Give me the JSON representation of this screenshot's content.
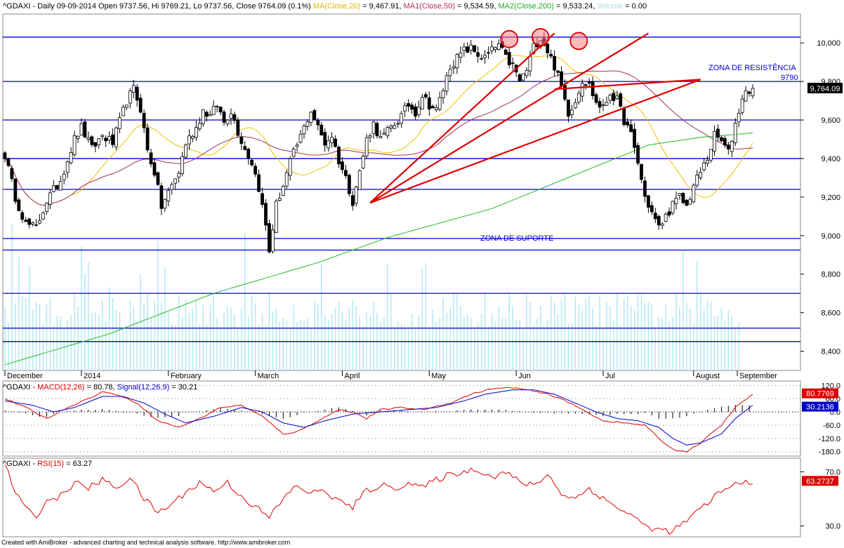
{
  "header": {
    "symbol": "^GDAXI",
    "period": "Daily",
    "date": "09-09-2014",
    "open": "Open 9737.56,",
    "hi": "Hi 9769.21,",
    "lo": "Lo 9737.56,",
    "close": "Close 9764.09 (0.1%)",
    "ma20_label": "MA(Close,20)",
    "ma20_value": "= 9,467.91,",
    "ma50_label": "MA1(Close,50)",
    "ma50_value": "= 9,534.59,",
    "ma200_label": "MA2(Close,200)",
    "ma200_value": "= 9,533.24,",
    "volume_label": "Volume",
    "volume_value": "= 0.00"
  },
  "macd_header": {
    "symbol": "^GDAXI -",
    "macd_label": "MACD(12,26)",
    "macd_value": "= 80.78,",
    "signal_label": "Signal(12,26,9)",
    "signal_value": "= 30.21"
  },
  "rsi_header": {
    "symbol": "^GDAXI -",
    "rsi_label": "RSI(15)",
    "rsi_value": "= 63.27"
  },
  "annotations": {
    "resistance": "ZONA DE RESISTÊNCIA",
    "support": "ZONA DE SUPORTE",
    "level_9790": "9790"
  },
  "footer": "Created with AmiBroker - advanced charting and technical analysis software. http://www.amibroker.com",
  "colors": {
    "up": "#ffffff",
    "down": "#000000",
    "ma20": "#f0c000",
    "ma50": "#a0305a",
    "ma200": "#22bb22",
    "volume": "#aee6f2",
    "hline": "#0000cc",
    "trend": "#dd0000",
    "macd": "#dd0000",
    "signal": "#0000cc",
    "rsi": "#dd0000"
  },
  "chart_data": [
    {
      "type": "candlestick",
      "title": "^GDAXI - Daily 09-09-2014",
      "ylim": [
        8300,
        10150
      ],
      "y_ticks": [
        "8,400",
        "8,600",
        "8,800",
        "9,000",
        "9,200",
        "9,400",
        "9,600",
        "9,800",
        "10,000"
      ],
      "x_labels": [
        "December",
        "2014",
        "February",
        "March",
        "April",
        "May",
        "Jun",
        "Jul",
        "August",
        "September"
      ],
      "last_close_label": "9,764.09",
      "horizontal_levels": [
        10030,
        9800,
        9600,
        9400,
        9240,
        8985,
        8925,
        8700,
        8520,
        8450
      ],
      "waypoints": [
        [
          0,
          9420
        ],
        [
          3,
          9200
        ],
        [
          6,
          9060
        ],
        [
          9,
          9040
        ],
        [
          12,
          9180
        ],
        [
          16,
          9290
        ],
        [
          20,
          9500
        ],
        [
          22,
          9560
        ],
        [
          25,
          9450
        ],
        [
          28,
          9520
        ],
        [
          31,
          9480
        ],
        [
          35,
          9700
        ],
        [
          37,
          9760
        ],
        [
          39,
          9660
        ],
        [
          41,
          9440
        ],
        [
          43,
          9330
        ],
        [
          45,
          9150
        ],
        [
          48,
          9260
        ],
        [
          50,
          9330
        ],
        [
          52,
          9480
        ],
        [
          55,
          9560
        ],
        [
          57,
          9650
        ],
        [
          59,
          9620
        ],
        [
          61,
          9680
        ],
        [
          63,
          9590
        ],
        [
          65,
          9650
        ],
        [
          67,
          9540
        ],
        [
          69,
          9450
        ],
        [
          71,
          9380
        ],
        [
          73,
          9250
        ],
        [
          75,
          9050
        ],
        [
          76,
          8920
        ],
        [
          78,
          9160
        ],
        [
          80,
          9260
        ],
        [
          82,
          9380
        ],
        [
          84,
          9470
        ],
        [
          86,
          9560
        ],
        [
          88,
          9650
        ],
        [
          90,
          9560
        ],
        [
          92,
          9480
        ],
        [
          94,
          9520
        ],
        [
          96,
          9390
        ],
        [
          98,
          9300
        ],
        [
          100,
          9180
        ],
        [
          102,
          9330
        ],
        [
          104,
          9500
        ],
        [
          106,
          9580
        ],
        [
          108,
          9500
        ],
        [
          110,
          9540
        ],
        [
          112,
          9580
        ],
        [
          114,
          9620
        ],
        [
          116,
          9680
        ],
        [
          118,
          9640
        ],
        [
          120,
          9730
        ],
        [
          122,
          9680
        ],
        [
          124,
          9650
        ],
        [
          126,
          9760
        ],
        [
          128,
          9880
        ],
        [
          130,
          9920
        ],
        [
          132,
          9960
        ],
        [
          134,
          9970
        ],
        [
          136,
          9940
        ],
        [
          138,
          9920
        ],
        [
          140,
          9960
        ],
        [
          142,
          9990
        ],
        [
          144,
          9920
        ],
        [
          146,
          9880
        ],
        [
          148,
          9800
        ],
        [
          150,
          9860
        ],
        [
          152,
          9980
        ],
        [
          154,
          10030
        ],
        [
          156,
          9960
        ],
        [
          158,
          9880
        ],
        [
          160,
          9770
        ],
        [
          162,
          9640
        ],
        [
          164,
          9700
        ],
        [
          166,
          9810
        ],
        [
          168,
          9780
        ],
        [
          170,
          9690
        ],
        [
          172,
          9660
        ],
        [
          174,
          9740
        ],
        [
          176,
          9700
        ],
        [
          178,
          9600
        ],
        [
          180,
          9520
        ],
        [
          182,
          9380
        ],
        [
          184,
          9200
        ],
        [
          186,
          9120
        ],
        [
          188,
          9040
        ],
        [
          190,
          9100
        ],
        [
          192,
          9160
        ],
        [
          194,
          9200
        ],
        [
          196,
          9150
        ],
        [
          198,
          9260
        ],
        [
          200,
          9330
        ],
        [
          202,
          9400
        ],
        [
          204,
          9520
        ],
        [
          206,
          9490
        ],
        [
          208,
          9430
        ],
        [
          210,
          9580
        ],
        [
          212,
          9720
        ],
        [
          214,
          9760
        ],
        [
          215,
          9764
        ]
      ],
      "ma200_path": [
        [
          0,
          8330
        ],
        [
          30,
          8490
        ],
        [
          60,
          8700
        ],
        [
          90,
          8860
        ],
        [
          110,
          8990
        ],
        [
          140,
          9140
        ],
        [
          170,
          9360
        ],
        [
          185,
          9470
        ],
        [
          200,
          9510
        ],
        [
          215,
          9533
        ]
      ],
      "volume_ylim": [
        0,
        700
      ],
      "trendlines": [
        {
          "from": [
            105,
            9170
          ],
          "to": [
            158,
            10050
          ]
        },
        {
          "from": [
            105,
            9170
          ],
          "to": [
            185,
            10050
          ]
        },
        {
          "from": [
            105,
            9170
          ],
          "to": [
            200,
            9810
          ]
        },
        {
          "from": [
            158,
            9760
          ],
          "to": [
            200,
            9810
          ]
        }
      ],
      "highlight_circles": [
        [
          145,
          10020
        ],
        [
          154,
          10030
        ],
        [
          165,
          10010
        ]
      ]
    },
    {
      "type": "line",
      "title": "MACD(12,26) / Signal(12,26,9)",
      "ylim": [
        -200,
        140
      ],
      "y_ticks": [
        "120.0",
        "60.0",
        "0.0",
        "-60.0",
        "-120.0",
        "-180.0"
      ],
      "last_values": {
        "macd": "80.7769",
        "signal": "30.2136"
      },
      "macd_waypoints": [
        [
          0,
          60
        ],
        [
          6,
          20
        ],
        [
          12,
          -30
        ],
        [
          18,
          20
        ],
        [
          24,
          60
        ],
        [
          28,
          90
        ],
        [
          32,
          80
        ],
        [
          38,
          40
        ],
        [
          44,
          -40
        ],
        [
          50,
          -70
        ],
        [
          56,
          -30
        ],
        [
          62,
          20
        ],
        [
          68,
          30
        ],
        [
          74,
          -20
        ],
        [
          80,
          -100
        ],
        [
          84,
          -90
        ],
        [
          90,
          -40
        ],
        [
          96,
          10
        ],
        [
          100,
          0
        ],
        [
          104,
          -30
        ],
        [
          108,
          10
        ],
        [
          114,
          20
        ],
        [
          120,
          10
        ],
        [
          128,
          40
        ],
        [
          134,
          80
        ],
        [
          140,
          105
        ],
        [
          146,
          110
        ],
        [
          150,
          100
        ],
        [
          156,
          80
        ],
        [
          160,
          60
        ],
        [
          166,
          10
        ],
        [
          172,
          -40
        ],
        [
          178,
          -50
        ],
        [
          184,
          -60
        ],
        [
          188,
          -120
        ],
        [
          192,
          -170
        ],
        [
          196,
          -180
        ],
        [
          200,
          -140
        ],
        [
          206,
          -60
        ],
        [
          210,
          20
        ],
        [
          215,
          80
        ]
      ],
      "signal_waypoints": [
        [
          0,
          50
        ],
        [
          8,
          30
        ],
        [
          14,
          0
        ],
        [
          20,
          20
        ],
        [
          28,
          70
        ],
        [
          34,
          70
        ],
        [
          40,
          40
        ],
        [
          46,
          -10
        ],
        [
          52,
          -50
        ],
        [
          60,
          -20
        ],
        [
          68,
          20
        ],
        [
          74,
          0
        ],
        [
          80,
          -50
        ],
        [
          86,
          -70
        ],
        [
          92,
          -40
        ],
        [
          100,
          -10
        ],
        [
          108,
          0
        ],
        [
          116,
          10
        ],
        [
          124,
          20
        ],
        [
          132,
          50
        ],
        [
          138,
          80
        ],
        [
          146,
          100
        ],
        [
          152,
          100
        ],
        [
          158,
          80
        ],
        [
          164,
          40
        ],
        [
          170,
          0
        ],
        [
          176,
          -30
        ],
        [
          182,
          -40
        ],
        [
          188,
          -70
        ],
        [
          192,
          -120
        ],
        [
          196,
          -150
        ],
        [
          200,
          -140
        ],
        [
          206,
          -100
        ],
        [
          210,
          -30
        ],
        [
          215,
          30
        ]
      ]
    },
    {
      "type": "line",
      "title": "RSI(15)",
      "ylim": [
        22,
        80
      ],
      "y_ticks": [
        "70.0",
        "30.0"
      ],
      "last_value": "63.2737",
      "rsi_waypoints": [
        [
          0,
          75
        ],
        [
          3,
          55
        ],
        [
          6,
          42
        ],
        [
          9,
          38
        ],
        [
          12,
          48
        ],
        [
          16,
          52
        ],
        [
          20,
          62
        ],
        [
          24,
          58
        ],
        [
          28,
          64
        ],
        [
          32,
          58
        ],
        [
          36,
          66
        ],
        [
          40,
          50
        ],
        [
          44,
          40
        ],
        [
          48,
          46
        ],
        [
          52,
          55
        ],
        [
          56,
          62
        ],
        [
          60,
          56
        ],
        [
          64,
          62
        ],
        [
          68,
          52
        ],
        [
          72,
          44
        ],
        [
          76,
          36
        ],
        [
          80,
          50
        ],
        [
          84,
          60
        ],
        [
          88,
          54
        ],
        [
          92,
          56
        ],
        [
          96,
          48
        ],
        [
          100,
          44
        ],
        [
          104,
          56
        ],
        [
          108,
          60
        ],
        [
          112,
          58
        ],
        [
          116,
          62
        ],
        [
          120,
          58
        ],
        [
          124,
          64
        ],
        [
          128,
          68
        ],
        [
          132,
          70
        ],
        [
          136,
          72
        ],
        [
          140,
          66
        ],
        [
          144,
          70
        ],
        [
          148,
          62
        ],
        [
          152,
          60
        ],
        [
          156,
          68
        ],
        [
          160,
          54
        ],
        [
          164,
          50
        ],
        [
          168,
          58
        ],
        [
          172,
          50
        ],
        [
          176,
          44
        ],
        [
          180,
          38
        ],
        [
          184,
          30
        ],
        [
          188,
          27
        ],
        [
          192,
          26
        ],
        [
          196,
          34
        ],
        [
          200,
          42
        ],
        [
          204,
          52
        ],
        [
          208,
          58
        ],
        [
          212,
          63
        ],
        [
          215,
          63
        ]
      ]
    }
  ]
}
